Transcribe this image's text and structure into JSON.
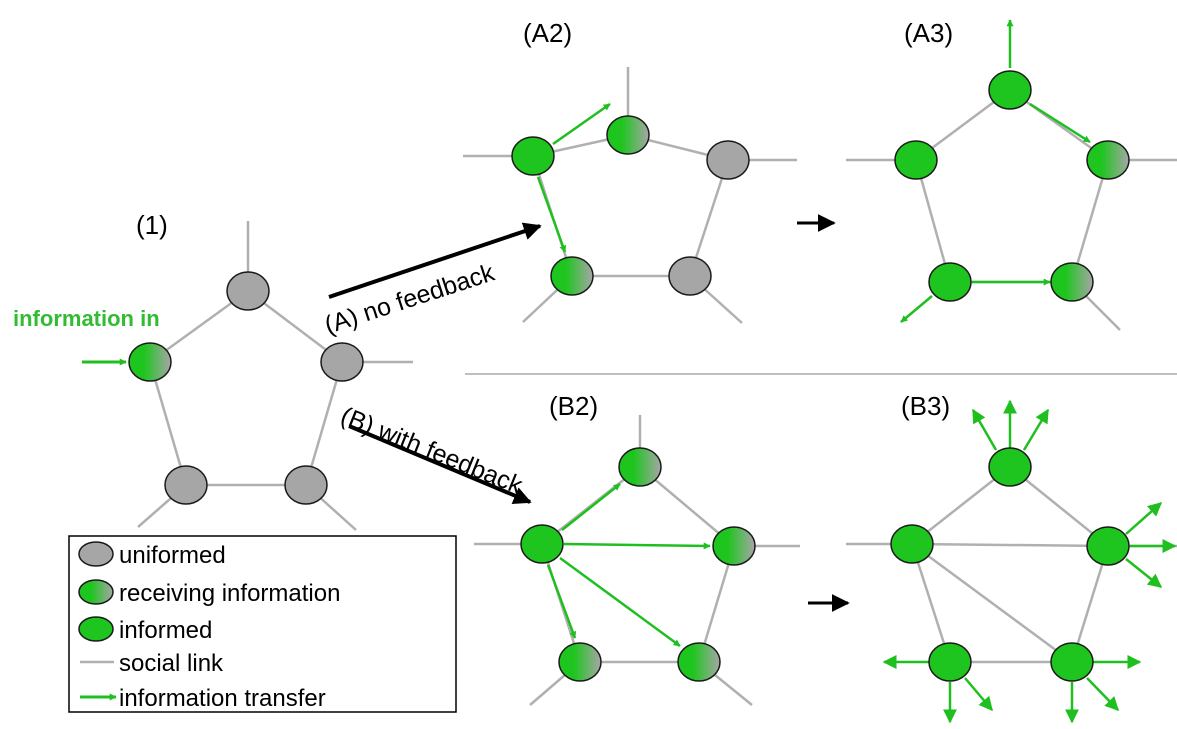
{
  "colors": {
    "informed": "#1ec51e",
    "uninformed": "#a6a6a6",
    "social_link": "#b0b0b0",
    "transfer": "#20bf20",
    "node_stroke": "#1a1a1a",
    "text": "#000000",
    "accent_text": "#33bb33"
  },
  "panels": {
    "p1": "(1)",
    "a2": "(A2)",
    "a3": "(A3)",
    "b2": "(B2)",
    "b3": "(B3)"
  },
  "info_in_label": "information in",
  "transitions": {
    "a_label": "(A) no feedback",
    "b_label": "(B) with feedback"
  },
  "legend": {
    "uninformed": "uniformed",
    "receiving": "receiving information",
    "informed": "informed",
    "social_link": "social link",
    "transfer": "information transfer"
  }
}
